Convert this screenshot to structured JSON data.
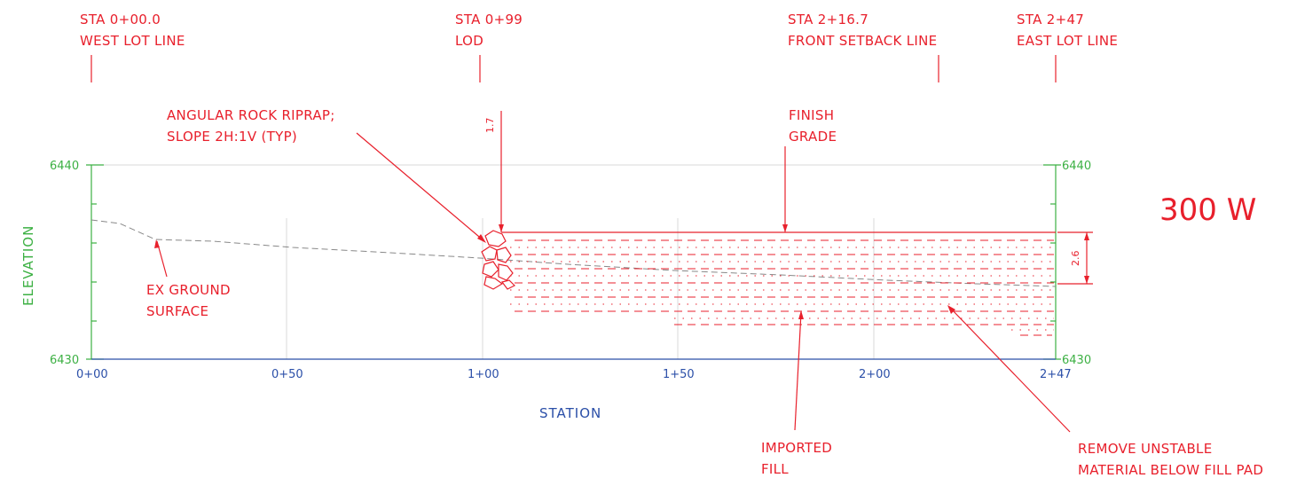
{
  "title": "300 W",
  "axes": {
    "y_label": "ELEVATION",
    "x_label": "STATION",
    "y_ticks": [
      "6440",
      "6430"
    ],
    "x_ticks": [
      "0+00",
      "0+50",
      "1+00",
      "1+50",
      "2+00",
      "2+47"
    ]
  },
  "station_markers": [
    {
      "line1": "STA 0+00.0",
      "line2": "WEST LOT LINE"
    },
    {
      "line1": "STA 0+99",
      "line2": "LOD"
    },
    {
      "line1": "STA 2+16.7",
      "line2": "FRONT SETBACK LINE"
    },
    {
      "line1": "STA 2+47",
      "line2": "EAST LOT LINE"
    }
  ],
  "callouts": {
    "riprap": {
      "line1": "ANGULAR ROCK RIPRAP;",
      "line2": "SLOPE 2H:1V (TYP)"
    },
    "finish_grade": {
      "line1": "FINISH",
      "line2": "GRADE"
    },
    "ex_ground": {
      "line1": "EX GROUND",
      "line2": "SURFACE"
    },
    "imported_fill": {
      "line1": "IMPORTED",
      "line2": "FILL"
    },
    "remove": {
      "line1": "REMOVE UNSTABLE",
      "line2": "MATERIAL BELOW FILL PAD"
    }
  },
  "dimensions": {
    "riprap_offset": "1.7",
    "fill_depth": "2.6"
  },
  "colors": {
    "annotation": "#e8202c",
    "elevation_axis": "#3cb043",
    "station_axis": "#2b4fa8",
    "ground": "#888888"
  }
}
